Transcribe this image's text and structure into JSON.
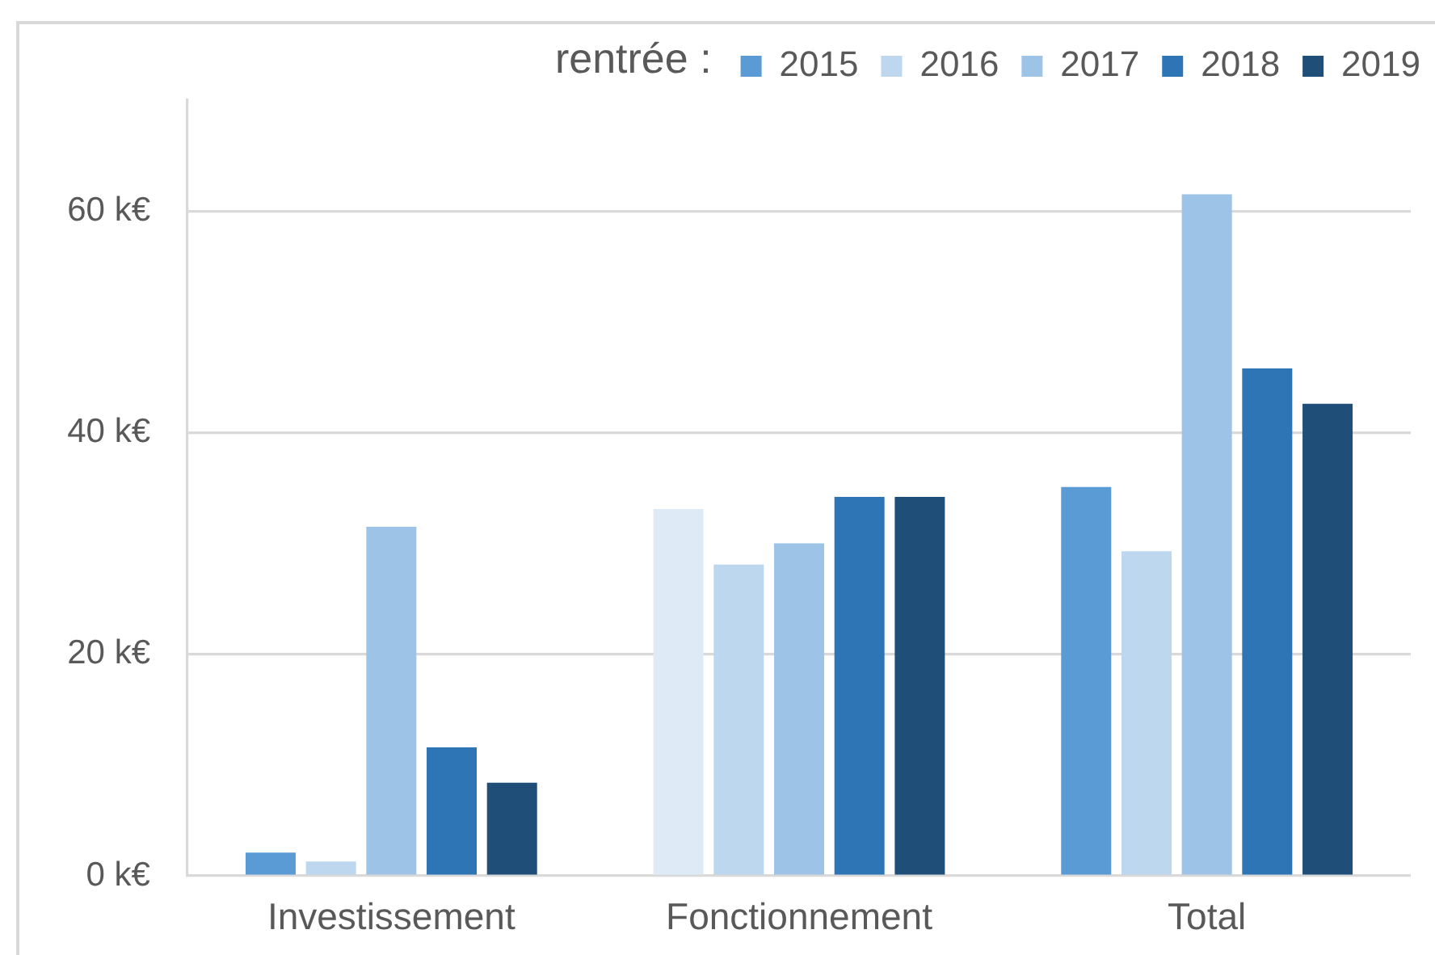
{
  "chart_data": {
    "type": "bar",
    "legend_title": "rentrée :",
    "categories": [
      "Investissement",
      "Fonctionnement",
      "Total"
    ],
    "series": [
      {
        "name": "2015",
        "color": "#5b9bd5",
        "colors": [
          "#5b9bd5",
          "#deebf7",
          "#5b9bd5"
        ],
        "values": [
          2.1,
          33.1,
          35.1
        ]
      },
      {
        "name": "2016",
        "color": "#bdd7ee",
        "values": [
          1.3,
          28.1,
          29.3
        ]
      },
      {
        "name": "2017",
        "color": "#9dc3e6",
        "values": [
          31.5,
          30.0,
          61.5
        ]
      },
      {
        "name": "2018",
        "color": "#2e75b6",
        "values": [
          11.6,
          34.2,
          45.8
        ]
      },
      {
        "name": "2019",
        "color": "#1f4e79",
        "values": [
          8.4,
          34.2,
          42.6
        ]
      }
    ],
    "ylim": [
      0,
      70
    ],
    "yticks": [
      {
        "value": 0,
        "label": "0 k€"
      },
      {
        "value": 20,
        "label": "20 k€"
      },
      {
        "value": 40,
        "label": "40 k€"
      },
      {
        "value": 60,
        "label": "60 k€"
      }
    ],
    "grid": "y",
    "legend": "top right"
  }
}
